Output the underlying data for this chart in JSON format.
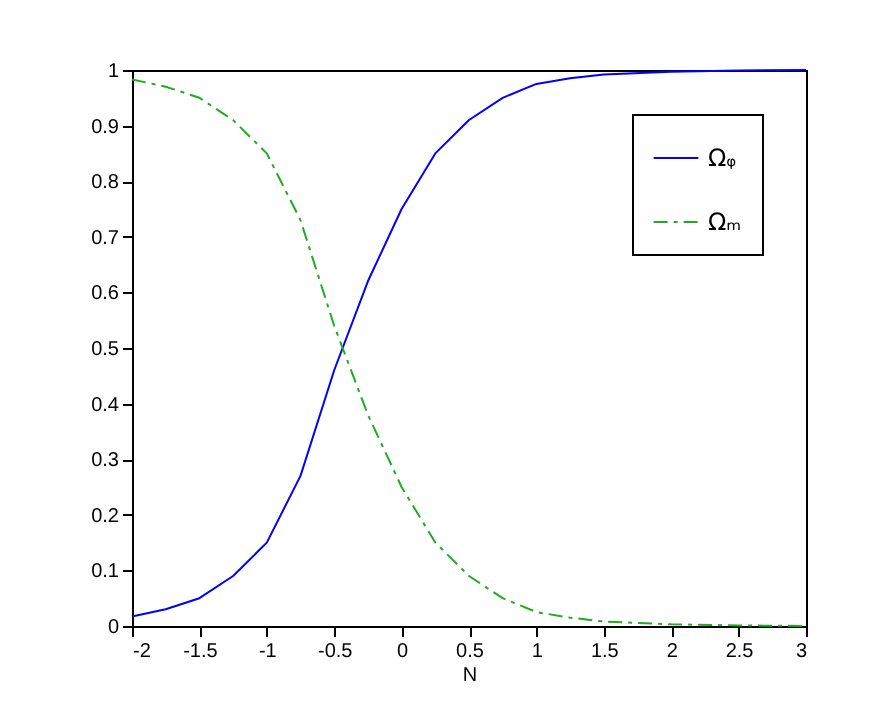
{
  "chart_data": {
    "type": "line",
    "xlabel": "N",
    "x": [
      -2,
      -1.75,
      -1.5,
      -1.25,
      -1,
      -0.75,
      -0.5,
      -0.25,
      0,
      0.25,
      0.5,
      0.75,
      1,
      1.25,
      1.5,
      2,
      2.5,
      3
    ],
    "series": [
      {
        "name": "Ωᵩ",
        "color": "#0000ff",
        "line_style": "solid",
        "values": [
          0.017,
          0.03,
          0.05,
          0.09,
          0.15,
          0.27,
          0.46,
          0.62,
          0.75,
          0.85,
          0.91,
          0.95,
          0.975,
          0.985,
          0.992,
          0.997,
          0.999,
          1.0
        ]
      },
      {
        "name": "Ωₘ",
        "color": "#22aa22",
        "line_style": "dashed",
        "values": [
          0.983,
          0.97,
          0.95,
          0.91,
          0.85,
          0.73,
          0.54,
          0.38,
          0.25,
          0.15,
          0.09,
          0.05,
          0.025,
          0.015,
          0.008,
          0.003,
          0.001,
          0.0
        ]
      }
    ],
    "xlim": [
      -2,
      3
    ],
    "xticks": [
      -2,
      -1.5,
      -1,
      -0.5,
      0,
      0.5,
      1,
      1.5,
      2,
      2.5,
      3
    ],
    "ylim": [
      0,
      1
    ],
    "yticks": [
      0,
      0.1,
      0.2,
      0.3,
      0.4,
      0.5,
      0.6,
      0.7,
      0.8,
      0.9,
      1
    ],
    "grid": false,
    "legend": "top right",
    "marker": "none"
  }
}
